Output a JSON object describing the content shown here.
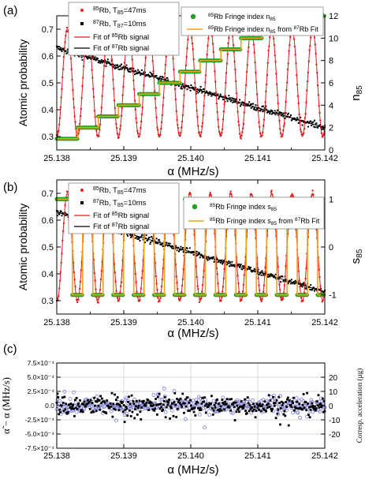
{
  "chart_data": [
    {
      "type": "scatter",
      "panel_label": "(a)",
      "xlabel": "α (MHz/s)",
      "xlim": [
        25.138,
        25.142
      ],
      "xticks": [
        "25.138",
        "25.139",
        "25.140",
        "25.141",
        "25.142"
      ],
      "ylabel": "Atomic probability",
      "ylim": [
        0.25,
        0.75
      ],
      "yticks": [
        "0.3",
        "0.4",
        "0.5",
        "0.6",
        "0.7"
      ],
      "y2label": "n85",
      "y2lim": [
        0,
        12
      ],
      "y2ticks": [
        "0",
        "2",
        "4",
        "6",
        "8",
        "10",
        "12"
      ],
      "legend_left": [
        {
          "marker": "dot",
          "color": "#e41a1c",
          "label": "85Rb, T85=47ms"
        },
        {
          "marker": "square",
          "color": "#000000",
          "label": "87Rb, T87=10ms"
        },
        {
          "marker": "line",
          "color": "#e41a1c",
          "label": "Fit of 85Rb signal"
        },
        {
          "marker": "line",
          "color": "#000000",
          "label": "Fit of 87Rb signal"
        }
      ],
      "legend_right": [
        {
          "marker": "circle",
          "color": "#1fa31f",
          "label": "85Rb Fringe index n85"
        },
        {
          "marker": "line",
          "color": "#f0a020",
          "label": "85Rb Fringe index n85 from 87Rb Fit"
        }
      ],
      "series": [
        {
          "name": "85Rb fit",
          "model": "cosine",
          "mid": 0.5,
          "amp": 0.2,
          "x_at_first_min": 25.13831,
          "period": 0.000305
        },
        {
          "name": "87Rb fit",
          "model": "line",
          "points": [
            [
              25.138,
              0.63
            ],
            [
              25.142,
              0.333
            ]
          ]
        },
        {
          "name": "n85",
          "model": "staircase",
          "start": 1,
          "steps": [
            [
              25.138,
              1
            ],
            [
              25.13831,
              2
            ],
            [
              25.13862,
              3
            ],
            [
              25.13892,
              4
            ],
            [
              25.13923,
              5
            ],
            [
              25.13953,
              6
            ],
            [
              25.13984,
              7
            ],
            [
              25.14014,
              8
            ],
            [
              25.14045,
              9
            ],
            [
              25.14075,
              10
            ],
            [
              25.14106,
              11
            ],
            [
              25.14136,
              12
            ],
            [
              25.142,
              12
            ]
          ]
        }
      ]
    },
    {
      "type": "scatter",
      "panel_label": "(b)",
      "xlabel": "α (MHz/s)",
      "xlim": [
        25.138,
        25.142
      ],
      "xticks": [
        "25.138",
        "25.139",
        "25.140",
        "25.141",
        "25.142"
      ],
      "ylabel": "Atomic probability",
      "ylim": [
        0.25,
        0.75
      ],
      "yticks": [
        "0.3",
        "0.4",
        "0.5",
        "0.6",
        "0.7"
      ],
      "y2label": "s85",
      "y2lim": [
        -1.4,
        1.4
      ],
      "y2ticks": [
        "-1",
        "0",
        "1"
      ],
      "legend_left": [
        {
          "marker": "dot",
          "color": "#e41a1c",
          "label": "85Rb, T85=47ms"
        },
        {
          "marker": "square",
          "color": "#000000",
          "label": "87Rb, T85=10ms"
        },
        {
          "marker": "line",
          "color": "#e41a1c",
          "label": "Fit of 85Rb signal"
        },
        {
          "marker": "line",
          "color": "#000000",
          "label": "Fit of 87Rb signal"
        }
      ],
      "legend_right": [
        {
          "marker": "circle",
          "color": "#1fa31f",
          "label": "85Rb Fringe index s85"
        },
        {
          "marker": "line",
          "color": "#f0a020",
          "label": "85Rb Fringe index s85 from 87Rb Fit"
        }
      ],
      "series": [
        {
          "name": "85Rb fit",
          "model": "cosine",
          "mid": 0.5,
          "amp": 0.2,
          "x_at_first_min": 25.13831,
          "period": 0.000305
        },
        {
          "name": "87Rb fit",
          "model": "line",
          "points": [
            [
              25.138,
              0.63
            ],
            [
              25.142,
              0.333
            ]
          ]
        },
        {
          "name": "s85",
          "model": "square_wave",
          "values": [
            1,
            -1
          ],
          "switch_every": 0.0001525
        }
      ]
    },
    {
      "type": "scatter",
      "panel_label": "(c)",
      "xlabel": "α (MHz/s)",
      "xlim": [
        25.138,
        25.142
      ],
      "xticks": [
        "25.138",
        "25.139",
        "25.140",
        "25.141",
        "25.142"
      ],
      "ylabel": "α̃ − α (MHz/s)",
      "ylim": [
        -0.00075,
        0.00075
      ],
      "yticks": [
        "7.5×10⁻⁴",
        "5.0×10⁻⁴",
        "2.5×10⁻⁴",
        "0.0",
        "-2.5×10⁻⁴",
        "-5.0×10⁻⁴",
        "-7.5×10⁻⁴"
      ],
      "y2label": "Corresp. acceleration (µg)",
      "y2lim": [
        -30,
        30
      ],
      "y2ticks": [
        "20",
        "10",
        "0",
        "-10",
        "-20"
      ],
      "series": [
        {
          "name": "black squares",
          "marker": "square",
          "color": "#000000",
          "spread": 0.00018
        },
        {
          "name": "blue circles",
          "marker": "circle",
          "color": "#7b7bd8",
          "spread": 0.00013
        }
      ]
    }
  ]
}
